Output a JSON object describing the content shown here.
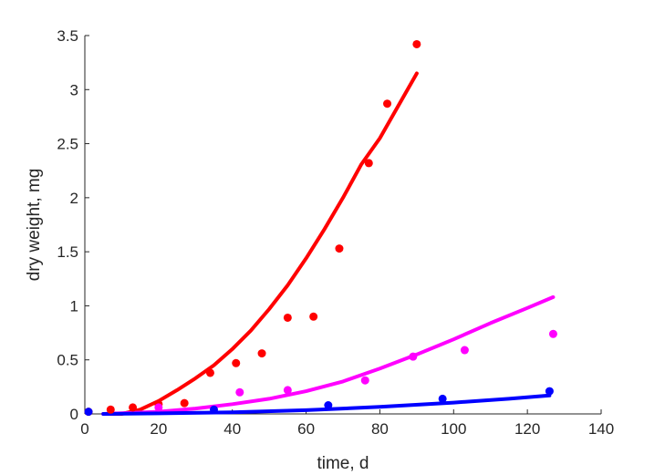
{
  "chart_data": {
    "type": "scatter",
    "title": "",
    "xlabel": "time, d",
    "ylabel": "dry weight, mg",
    "xlim": [
      0,
      140
    ],
    "ylim": [
      0,
      3.5
    ],
    "xticks": [
      0,
      20,
      40,
      60,
      80,
      100,
      120,
      140
    ],
    "yticks": [
      0,
      0.5,
      1,
      1.5,
      2,
      2.5,
      3,
      3.5
    ],
    "xtick_labels": [
      "0",
      "20",
      "40",
      "60",
      "80",
      "100",
      "120",
      "140"
    ],
    "ytick_labels": [
      "0",
      "0.5",
      "1",
      "1.5",
      "2",
      "2.5",
      "3",
      "3.5"
    ],
    "grid": false,
    "legend": "none",
    "series": [
      {
        "color": "#ff0000",
        "points": [
          {
            "x": 1,
            "y": 0.02
          },
          {
            "x": 7,
            "y": 0.04
          },
          {
            "x": 13,
            "y": 0.06
          },
          {
            "x": 20,
            "y": 0.09
          },
          {
            "x": 27,
            "y": 0.1
          },
          {
            "x": 34,
            "y": 0.38
          },
          {
            "x": 41,
            "y": 0.47
          },
          {
            "x": 48,
            "y": 0.56
          },
          {
            "x": 55,
            "y": 0.89
          },
          {
            "x": 62,
            "y": 0.9
          },
          {
            "x": 69,
            "y": 1.53
          },
          {
            "x": 77,
            "y": 2.32
          },
          {
            "x": 82,
            "y": 2.87
          },
          {
            "x": 90,
            "y": 3.42
          }
        ],
        "fit": [
          {
            "x": 5,
            "y": 0.0
          },
          {
            "x": 10,
            "y": 0.0
          },
          {
            "x": 15,
            "y": 0.04
          },
          {
            "x": 20,
            "y": 0.12
          },
          {
            "x": 25,
            "y": 0.22
          },
          {
            "x": 30,
            "y": 0.33
          },
          {
            "x": 35,
            "y": 0.45
          },
          {
            "x": 40,
            "y": 0.6
          },
          {
            "x": 45,
            "y": 0.77
          },
          {
            "x": 50,
            "y": 0.97
          },
          {
            "x": 55,
            "y": 1.19
          },
          {
            "x": 60,
            "y": 1.44
          },
          {
            "x": 65,
            "y": 1.71
          },
          {
            "x": 70,
            "y": 2.0
          },
          {
            "x": 75,
            "y": 2.31
          },
          {
            "x": 80,
            "y": 2.55
          },
          {
            "x": 85,
            "y": 2.85
          },
          {
            "x": 90,
            "y": 3.15
          }
        ]
      },
      {
        "color": "#ff00ff",
        "points": [
          {
            "x": 20,
            "y": 0.06
          },
          {
            "x": 42,
            "y": 0.2
          },
          {
            "x": 55,
            "y": 0.22
          },
          {
            "x": 76,
            "y": 0.31
          },
          {
            "x": 89,
            "y": 0.53
          },
          {
            "x": 103,
            "y": 0.59
          },
          {
            "x": 127,
            "y": 0.74
          }
        ],
        "fit": [
          {
            "x": 5,
            "y": 0.0
          },
          {
            "x": 20,
            "y": 0.02
          },
          {
            "x": 30,
            "y": 0.05
          },
          {
            "x": 40,
            "y": 0.09
          },
          {
            "x": 50,
            "y": 0.14
          },
          {
            "x": 60,
            "y": 0.21
          },
          {
            "x": 70,
            "y": 0.3
          },
          {
            "x": 80,
            "y": 0.42
          },
          {
            "x": 90,
            "y": 0.55
          },
          {
            "x": 100,
            "y": 0.69
          },
          {
            "x": 110,
            "y": 0.84
          },
          {
            "x": 120,
            "y": 0.98
          },
          {
            "x": 127,
            "y": 1.08
          }
        ]
      },
      {
        "color": "#0000ff",
        "points": [
          {
            "x": 1,
            "y": 0.02
          },
          {
            "x": 35,
            "y": 0.04
          },
          {
            "x": 66,
            "y": 0.08
          },
          {
            "x": 97,
            "y": 0.14
          },
          {
            "x": 126,
            "y": 0.21
          }
        ],
        "fit": [
          {
            "x": 5,
            "y": 0.0
          },
          {
            "x": 20,
            "y": 0.005
          },
          {
            "x": 40,
            "y": 0.015
          },
          {
            "x": 60,
            "y": 0.035
          },
          {
            "x": 80,
            "y": 0.065
          },
          {
            "x": 100,
            "y": 0.105
          },
          {
            "x": 115,
            "y": 0.14
          },
          {
            "x": 126,
            "y": 0.17
          }
        ]
      }
    ]
  }
}
